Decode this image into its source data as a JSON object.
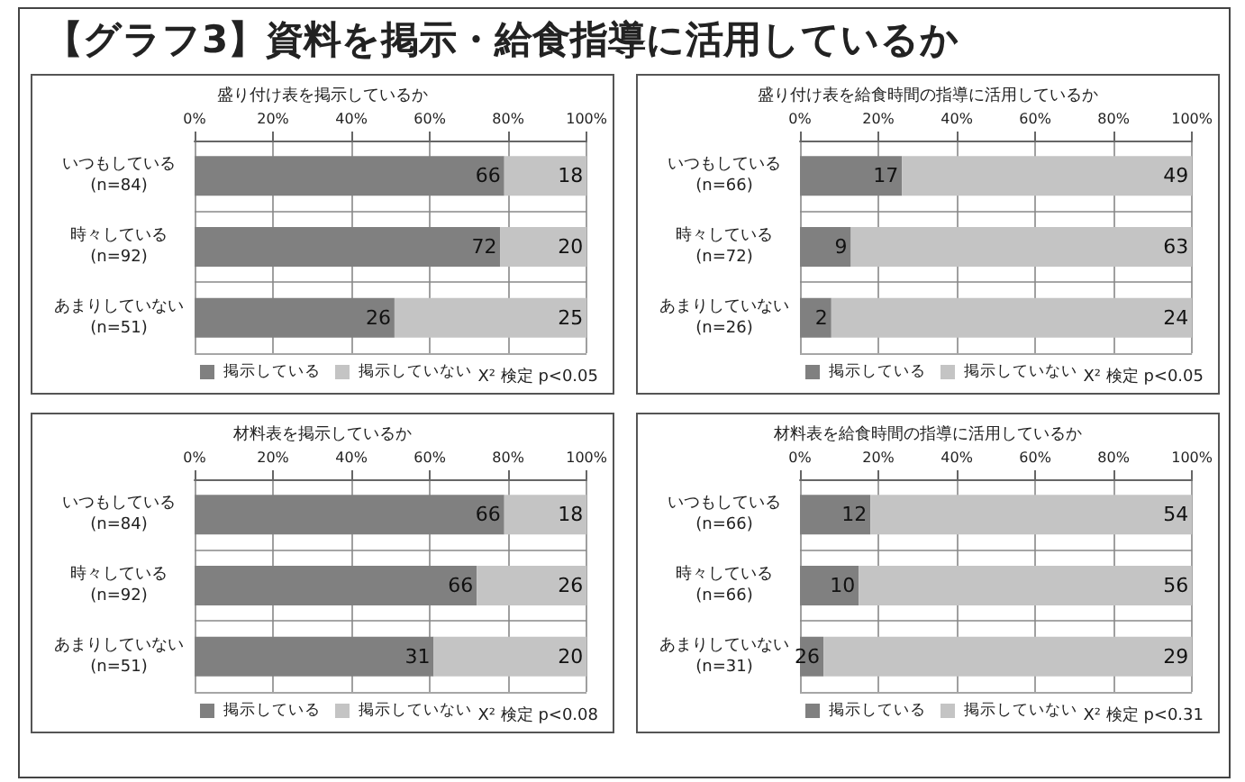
{
  "chart_data": [
    {
      "type": "bar",
      "orientation": "horizontal",
      "stacked": true,
      "title": "盛り付け表を掲示しているか",
      "categories": [
        "いつもしている\n(n=84)",
        "時々している\n(n=92)",
        "あまりしていない\n(n=51)"
      ],
      "annotations": [
        "【グラフ3】資料を掲示・給食指導に活用しているか",
        "X² 検定 p<0.05",
        {
          "text": "66",
          "x": 79,
          "y": "いつもしている\n(n=84)"
        },
        {
          "text": "18",
          "x": 100,
          "y": "いつもしている\n(n=84)"
        },
        {
          "text": "72",
          "x": 78,
          "y": "時々している\n(n=92)"
        },
        {
          "text": "20",
          "x": 100,
          "y": "時々している\n(n=92)"
        },
        {
          "text": "26",
          "x": 51,
          "y": "あまりしていない\n(n=51)"
        },
        {
          "text": "25",
          "x": 100,
          "y": "あまりしていない\n(n=51)"
        }
      ],
      "series": [
        {
          "name": "掲示している",
          "color": "#808080",
          "values": [
            79,
            78,
            51
          ]
        },
        {
          "name": "掲示していない",
          "color": "#c4c4c4",
          "values": [
            21,
            22,
            49
          ]
        }
      ],
      "xlim": [
        0,
        100
      ],
      "xticks": [
        {
          "value": 0,
          "label": "0%"
        },
        {
          "value": 20,
          "label": "20%"
        },
        {
          "value": 40,
          "label": "40%"
        },
        {
          "value": 60,
          "label": "60%"
        },
        {
          "value": 80,
          "label": "80%"
        },
        {
          "value": 100,
          "label": "100%"
        }
      ],
      "grid": "x",
      "legend": "bottom"
    },
    {
      "type": "bar",
      "orientation": "horizontal",
      "stacked": true,
      "title": "盛り付け表を給食時間の指導に活用しているか",
      "categories": [
        "いつもしている\n(n=66)",
        "時々している\n(n=72)",
        "あまりしていない\n(n=26)"
      ],
      "annotations": [
        "X² 検定 p<0.05",
        {
          "text": "17",
          "x": 26,
          "y": "いつもしている\n(n=66)"
        },
        {
          "text": "49",
          "x": 100,
          "y": "いつもしている\n(n=66)"
        },
        {
          "text": "9",
          "x": 13,
          "y": "時々している\n(n=72)"
        },
        {
          "text": "63",
          "x": 100,
          "y": "時々している\n(n=72)"
        },
        {
          "text": "2",
          "x": 8,
          "y": "あまりしていない\n(n=26)"
        },
        {
          "text": "24",
          "x": 100,
          "y": "あまりしていない\n(n=26)"
        }
      ],
      "series": [
        {
          "name": "掲示している",
          "color": "#808080",
          "values": [
            26,
            13,
            8
          ]
        },
        {
          "name": "掲示していない",
          "color": "#c4c4c4",
          "values": [
            74,
            87,
            92
          ]
        }
      ],
      "xlim": [
        0,
        100
      ],
      "xticks": [
        {
          "value": 0,
          "label": "0%"
        },
        {
          "value": 20,
          "label": "20%"
        },
        {
          "value": 40,
          "label": "40%"
        },
        {
          "value": 60,
          "label": "60%"
        },
        {
          "value": 80,
          "label": "80%"
        },
        {
          "value": 100,
          "label": "100%"
        }
      ],
      "grid": "x",
      "legend": "bottom"
    },
    {
      "type": "bar",
      "orientation": "horizontal",
      "stacked": true,
      "title": "材料表を掲示しているか",
      "categories": [
        "いつもしている\n(n=84)",
        "時々している\n(n=92)",
        "あまりしていない\n(n=51)"
      ],
      "annotations": [
        "X² 検定 p<0.08",
        {
          "text": "66",
          "x": 79,
          "y": "いつもしている\n(n=84)"
        },
        {
          "text": "18",
          "x": 100,
          "y": "いつもしている\n(n=84)"
        },
        {
          "text": "66",
          "x": 72,
          "y": "時々している\n(n=92)"
        },
        {
          "text": "26",
          "x": 100,
          "y": "時々している\n(n=92)"
        },
        {
          "text": "31",
          "x": 61,
          "y": "あまりしていない\n(n=51)"
        },
        {
          "text": "20",
          "x": 100,
          "y": "あまりしていない\n(n=51)"
        }
      ],
      "series": [
        {
          "name": "掲示している",
          "color": "#808080",
          "values": [
            79,
            72,
            61
          ]
        },
        {
          "name": "掲示していない",
          "color": "#c4c4c4",
          "values": [
            21,
            28,
            39
          ]
        }
      ],
      "xlim": [
        0,
        100
      ],
      "xticks": [
        {
          "value": 0,
          "label": "0%"
        },
        {
          "value": 20,
          "label": "20%"
        },
        {
          "value": 40,
          "label": "40%"
        },
        {
          "value": 60,
          "label": "60%"
        },
        {
          "value": 80,
          "label": "80%"
        },
        {
          "value": 100,
          "label": "100%"
        }
      ],
      "grid": "x",
      "legend": "bottom"
    },
    {
      "type": "bar",
      "orientation": "horizontal",
      "stacked": true,
      "title": "材料表を給食時間の指導に活用しているか",
      "categories": [
        "いつもしている\n(n=66)",
        "時々している\n(n=66)",
        "あまりしていない\n(n=31)"
      ],
      "annotations": [
        "X² 検定 p<0.31",
        {
          "text": "12",
          "x": 18,
          "y": "いつもしている\n(n=66)"
        },
        {
          "text": "54",
          "x": 100,
          "y": "いつもしている\n(n=66)"
        },
        {
          "text": "10",
          "x": 15,
          "y": "時々している\n(n=66)"
        },
        {
          "text": "56",
          "x": 100,
          "y": "時々している\n(n=66)"
        },
        {
          "text": "26",
          "x": 6,
          "y": "あまりしていない\n(n=31)"
        },
        {
          "text": "29",
          "x": 100,
          "y": "あまりしていない\n(n=31)"
        }
      ],
      "series": [
        {
          "name": "掲示している",
          "color": "#808080",
          "values": [
            18,
            15,
            6
          ]
        },
        {
          "name": "掲示していない",
          "color": "#c4c4c4",
          "values": [
            82,
            85,
            94
          ]
        }
      ],
      "xlim": [
        0,
        100
      ],
      "xticks": [
        {
          "value": 0,
          "label": "0%"
        },
        {
          "value": 20,
          "label": "20%"
        },
        {
          "value": 40,
          "label": "40%"
        },
        {
          "value": 60,
          "label": "60%"
        },
        {
          "value": 80,
          "label": "80%"
        },
        {
          "value": 100,
          "label": "100%"
        }
      ],
      "grid": "x",
      "legend": "bottom"
    }
  ]
}
